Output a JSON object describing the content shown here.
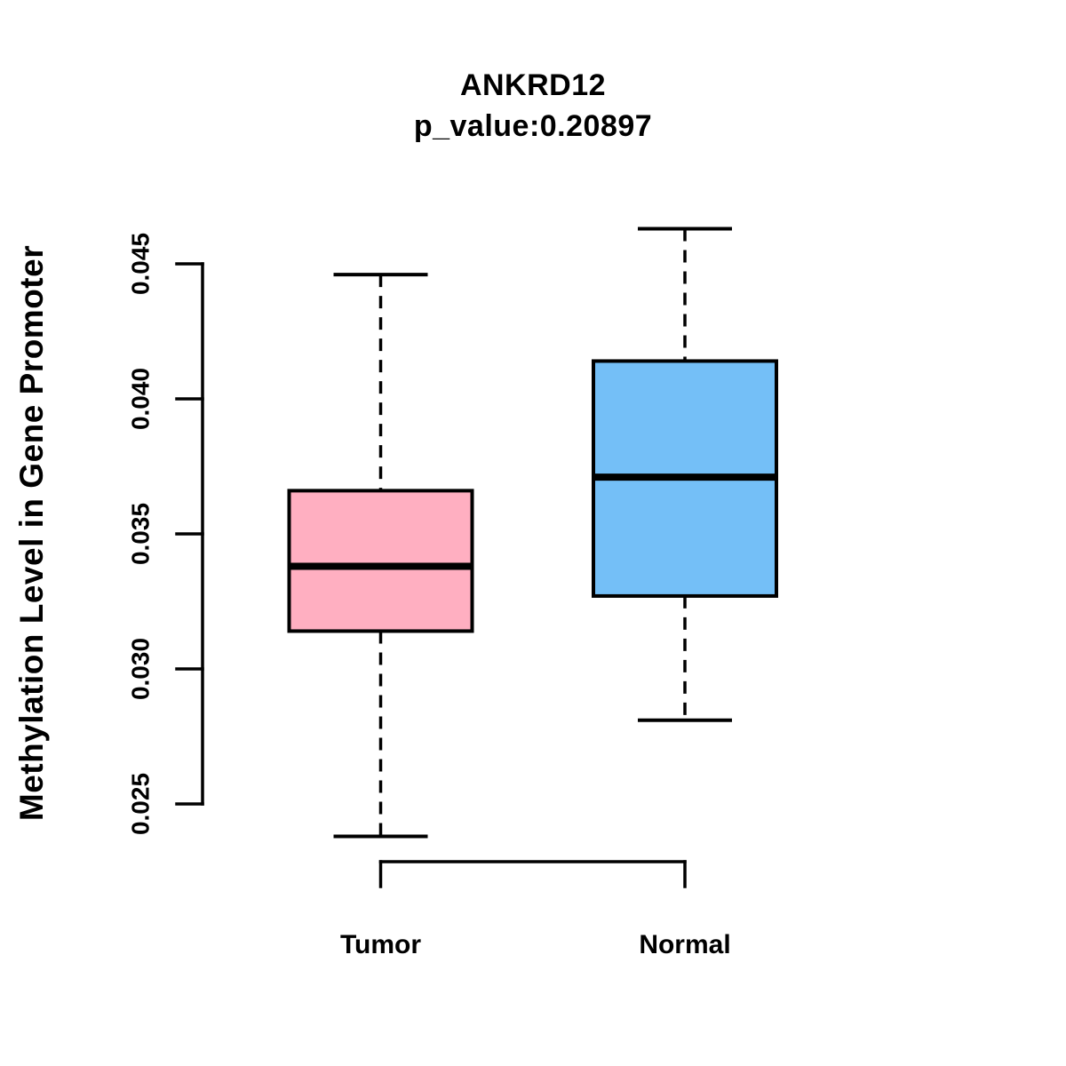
{
  "figure": {
    "background": "#FFFFFF",
    "axis_color": "#000000"
  },
  "chart_data": {
    "type": "boxplot",
    "title": "ANKRD12",
    "subtitle": "p_value:0.20897",
    "ylabel": "Methylation Level in Gene Promoter",
    "xlabel": "",
    "ylim": [
      0.025,
      0.045
    ],
    "yticks": [
      0.025,
      0.03,
      0.035,
      0.04,
      0.045
    ],
    "ytick_labels": [
      "0.025",
      "0.030",
      "0.035",
      "0.040",
      "0.045"
    ],
    "grid": false,
    "legend": "none",
    "whisker_line_style": "dashed",
    "groups": [
      {
        "label": "Tumor",
        "fill": "#FFAFC1",
        "stats": {
          "whisker_low": 0.0238,
          "q1": 0.0314,
          "median": 0.0338,
          "q3": 0.0366,
          "whisker_high": 0.0446
        }
      },
      {
        "label": "Normal",
        "fill": "#74BFF7",
        "stats": {
          "whisker_low": 0.0281,
          "q1": 0.0327,
          "median": 0.0371,
          "q3": 0.0414,
          "whisker_high": 0.0463
        }
      }
    ]
  }
}
